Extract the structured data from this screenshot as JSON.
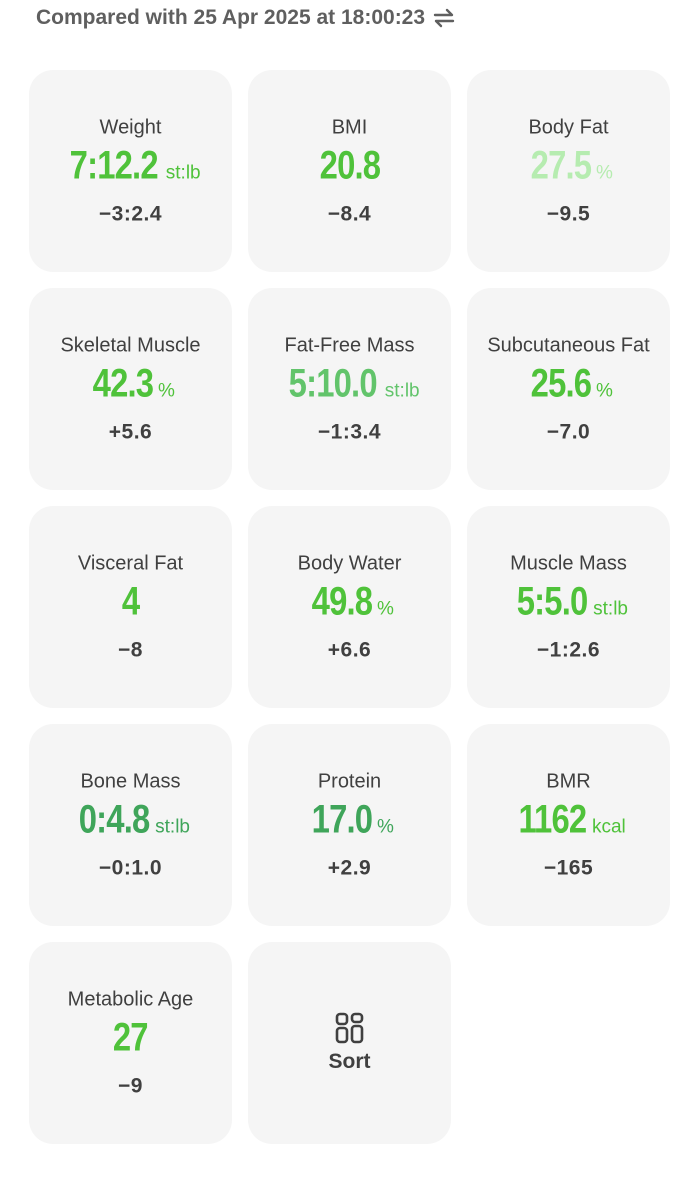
{
  "header": {
    "text": "Compared with 25 Apr 2025 at 18:00:23"
  },
  "colors": {
    "green": "#4fc23a",
    "green_light": "#b6ecb0",
    "green_mid": "#62c46b",
    "green_dark": "#3fa55a",
    "text": "#404040"
  },
  "cards": [
    {
      "label": "Weight",
      "value": "7:12.2",
      "unit": "st:lb",
      "delta": "−3:2.4",
      "color": "#4fc23a"
    },
    {
      "label": "BMI",
      "value": "20.8",
      "unit": "",
      "delta": "−8.4",
      "color": "#4fc23a"
    },
    {
      "label": "Body Fat",
      "value": "27.5",
      "unit": "%",
      "delta": "−9.5",
      "color": "#b6ecb0"
    },
    {
      "label": "Skeletal Muscle",
      "value": "42.3",
      "unit": "%",
      "delta": "+5.6",
      "color": "#4fc23a"
    },
    {
      "label": "Fat-Free Mass",
      "value": "5:10.0",
      "unit": "st:lb",
      "delta": "−1:3.4",
      "color": "#62c46b"
    },
    {
      "label": "Subcutaneous Fat",
      "value": "25.6",
      "unit": "%",
      "delta": "−7.0",
      "color": "#4fc23a"
    },
    {
      "label": "Visceral Fat",
      "value": "4",
      "unit": "",
      "delta": "−8",
      "color": "#4fc23a"
    },
    {
      "label": "Body Water",
      "value": "49.8",
      "unit": "%",
      "delta": "+6.6",
      "color": "#4fc23a"
    },
    {
      "label": "Muscle Mass",
      "value": "5:5.0",
      "unit": "st:lb",
      "delta": "−1:2.6",
      "color": "#4fc23a"
    },
    {
      "label": "Bone Mass",
      "value": "0:4.8",
      "unit": "st:lb",
      "delta": "−0:1.0",
      "color": "#3fa55a"
    },
    {
      "label": "Protein",
      "value": "17.0",
      "unit": "%",
      "delta": "+2.9",
      "color": "#3fa55a"
    },
    {
      "label": "BMR",
      "value": "1162",
      "unit": "kcal",
      "delta": "−165",
      "color": "#4fc23a"
    },
    {
      "label": "Metabolic Age",
      "value": "27",
      "unit": "",
      "delta": "−9",
      "color": "#4fc23a"
    }
  ],
  "sort": {
    "label": "Sort",
    "icon": "sort-grid-icon"
  },
  "icons": {
    "header": "swap-arrows-icon"
  }
}
